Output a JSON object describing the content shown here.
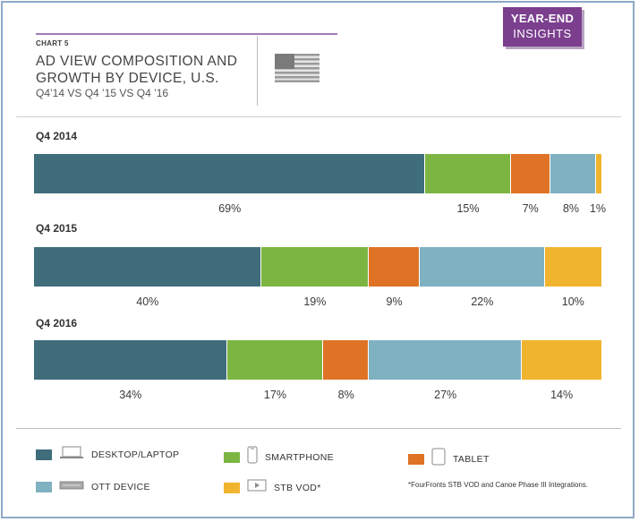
{
  "badge": {
    "line1": "YEAR-END",
    "line2": "INSIGHTS"
  },
  "header": {
    "chart_label": "CHART 5",
    "title": "AD VIEW COMPOSITION AND GROWTH BY DEVICE, U.S.",
    "subtitle": "Q4’14 VS Q4 ’15 VS Q4 ’16"
  },
  "colors": {
    "desktop": "#3f6d7b",
    "smartphone": "#7db543",
    "tablet": "#de7326",
    "ott": "#7fb1c1",
    "stb": "#f1b42e"
  },
  "chart_data": {
    "type": "bar",
    "orientation": "horizontal-stacked-100",
    "categories": [
      "Q4 2014",
      "Q4 2015",
      "Q4 2016"
    ],
    "series": [
      {
        "name": "DESKTOP/LAPTOP",
        "values": [
          69,
          40,
          34
        ]
      },
      {
        "name": "SMARTPHONE",
        "values": [
          15,
          19,
          17
        ]
      },
      {
        "name": "TABLET",
        "values": [
          7,
          9,
          8
        ]
      },
      {
        "name": "OTT DEVICE",
        "values": [
          8,
          22,
          27
        ]
      },
      {
        "name": "STB VOD*",
        "values": [
          1,
          10,
          14
        ]
      }
    ],
    "value_labels": [
      [
        "69%",
        "15%",
        "7%",
        "8%",
        "1%"
      ],
      [
        "40%",
        "19%",
        "9%",
        "22%",
        "10%"
      ],
      [
        "34%",
        "17%",
        "8%",
        "27%",
        "14%"
      ]
    ],
    "legend_position": "bottom"
  },
  "legend": [
    {
      "label": "DESKTOP/LAPTOP",
      "icon": "laptop-icon",
      "color_key": "desktop"
    },
    {
      "label": "SMARTPHONE",
      "icon": "smartphone-icon",
      "color_key": "smartphone"
    },
    {
      "label": "TABLET",
      "icon": "tablet-icon",
      "color_key": "tablet"
    },
    {
      "label": "OTT DEVICE",
      "icon": "ott-device-icon",
      "color_key": "ott"
    },
    {
      "label": "STB VOD*",
      "icon": "set-top-box-icon",
      "color_key": "stb"
    }
  ],
  "footnote": "*FourFronts STB VOD and Canoe Phase III Integrations."
}
